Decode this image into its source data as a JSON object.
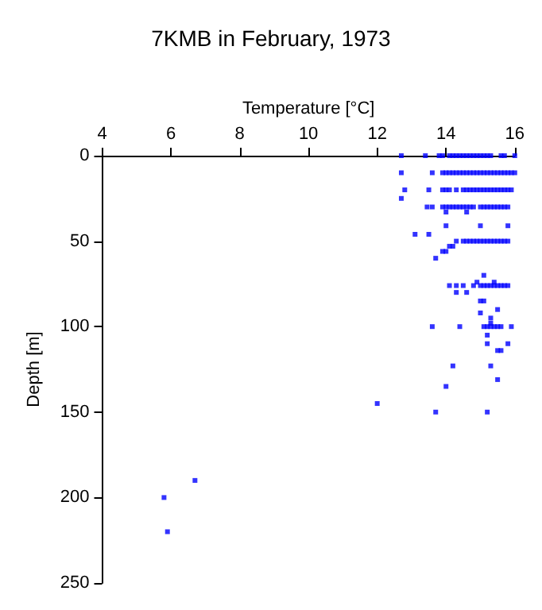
{
  "chart_data": {
    "type": "scatter",
    "title": "7KMB in February, 1973",
    "xlabel": "Temperature [°C]",
    "ylabel": "Depth [m]",
    "xlim": [
      4,
      16
    ],
    "xticks": [
      4,
      6,
      8,
      10,
      12,
      14,
      16
    ],
    "ylim": [
      250,
      0
    ],
    "yticks": [
      0,
      50,
      100,
      150,
      200,
      250
    ],
    "grid": false,
    "marker": "square",
    "series": [
      {
        "color": "#0000ff",
        "x": [
          12.7,
          13.4,
          13.8,
          13.9,
          14.1,
          14.2,
          14.3,
          14.4,
          14.5,
          14.6,
          14.7,
          14.8,
          14.9,
          15.0,
          15.1,
          15.2,
          15.3,
          15.6,
          15.7,
          16.0,
          12.7,
          13.6,
          13.9,
          14.0,
          14.1,
          14.2,
          14.3,
          14.4,
          14.5,
          14.6,
          14.7,
          14.8,
          14.9,
          15.0,
          15.1,
          15.2,
          15.3,
          15.4,
          15.5,
          15.6,
          15.7,
          15.8,
          15.9,
          16.0,
          12.8,
          13.5,
          13.9,
          14.0,
          14.1,
          14.3,
          14.5,
          14.6,
          14.7,
          14.8,
          14.9,
          15.0,
          15.1,
          15.2,
          15.3,
          15.4,
          15.5,
          15.6,
          15.7,
          15.8,
          15.9,
          12.7,
          13.45,
          13.6,
          13.9,
          14.0,
          14.1,
          14.2,
          14.3,
          14.4,
          14.5,
          14.6,
          14.7,
          14.8,
          15.0,
          15.1,
          15.2,
          15.3,
          15.4,
          15.5,
          15.6,
          15.7,
          15.8,
          14.0,
          14.6,
          14.0,
          15.0,
          15.8,
          13.1,
          13.5,
          14.3,
          14.5,
          14.6,
          14.7,
          14.8,
          14.9,
          15.0,
          15.1,
          15.2,
          15.3,
          15.4,
          15.5,
          15.6,
          15.7,
          15.8,
          14.1,
          14.2,
          13.9,
          14.0,
          13.7,
          15.1,
          14.9,
          15.4,
          14.1,
          14.3,
          14.5,
          14.8,
          15.0,
          15.1,
          15.2,
          15.3,
          15.4,
          15.5,
          15.6,
          15.7,
          15.8,
          14.3,
          14.6,
          15.0,
          15.1,
          15.5,
          15.0,
          15.3,
          15.3,
          13.6,
          14.4,
          15.1,
          15.2,
          15.3,
          15.4,
          15.5,
          15.6,
          15.9,
          15.2,
          15.2,
          15.8,
          15.5,
          15.6,
          14.2,
          15.3,
          15.5,
          14.0,
          12.0,
          13.7,
          15.2,
          6.7,
          5.8,
          5.9
        ],
        "values": [
          0,
          0,
          0,
          0,
          0,
          0,
          0,
          0,
          0,
          0,
          0,
          0,
          0,
          0,
          0,
          0,
          0,
          0,
          0,
          0,
          10,
          10,
          10,
          10,
          10,
          10,
          10,
          10,
          10,
          10,
          10,
          10,
          10,
          10,
          10,
          10,
          10,
          10,
          10,
          10,
          10,
          10,
          10,
          10,
          20,
          20,
          20,
          20,
          20,
          20,
          20,
          20,
          20,
          20,
          20,
          20,
          20,
          20,
          20,
          20,
          20,
          20,
          20,
          20,
          20,
          25,
          30,
          30,
          30,
          30,
          30,
          30,
          30,
          30,
          30,
          30,
          30,
          30,
          30,
          30,
          30,
          30,
          30,
          30,
          30,
          30,
          30,
          33,
          33,
          41,
          41,
          41,
          46,
          46,
          50,
          50,
          50,
          50,
          50,
          50,
          50,
          50,
          50,
          50,
          50,
          50,
          50,
          50,
          50,
          53,
          53,
          56,
          56,
          60,
          70,
          74,
          74,
          76,
          76,
          76,
          76,
          76,
          76,
          76,
          76,
          76,
          76,
          76,
          76,
          76,
          80,
          80,
          85,
          85,
          90,
          92,
          95,
          98,
          100,
          100,
          100,
          100,
          100,
          100,
          100,
          100,
          100,
          105,
          110,
          110,
          114,
          114,
          123,
          123,
          131,
          135,
          145,
          150,
          150,
          190,
          200,
          220
        ]
      }
    ]
  }
}
